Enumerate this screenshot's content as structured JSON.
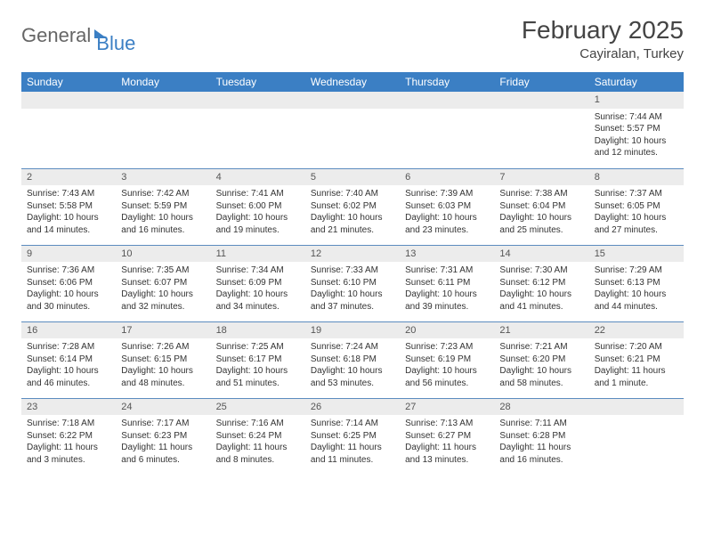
{
  "brand": {
    "part1": "General",
    "part2": "Blue"
  },
  "title": "February 2025",
  "location": "Cayiralan, Turkey",
  "colors": {
    "header_bg": "#3b7fc4",
    "header_fg": "#ffffff",
    "daynum_bg": "#ececec",
    "row_border": "#5c8cbf",
    "text": "#333333"
  },
  "weekdays": [
    "Sunday",
    "Monday",
    "Tuesday",
    "Wednesday",
    "Thursday",
    "Friday",
    "Saturday"
  ],
  "weeks": [
    [
      null,
      null,
      null,
      null,
      null,
      null,
      {
        "n": "1",
        "sr": "7:44 AM",
        "ss": "5:57 PM",
        "dl": "10 hours and 12 minutes."
      }
    ],
    [
      {
        "n": "2",
        "sr": "7:43 AM",
        "ss": "5:58 PM",
        "dl": "10 hours and 14 minutes."
      },
      {
        "n": "3",
        "sr": "7:42 AM",
        "ss": "5:59 PM",
        "dl": "10 hours and 16 minutes."
      },
      {
        "n": "4",
        "sr": "7:41 AM",
        "ss": "6:00 PM",
        "dl": "10 hours and 19 minutes."
      },
      {
        "n": "5",
        "sr": "7:40 AM",
        "ss": "6:02 PM",
        "dl": "10 hours and 21 minutes."
      },
      {
        "n": "6",
        "sr": "7:39 AM",
        "ss": "6:03 PM",
        "dl": "10 hours and 23 minutes."
      },
      {
        "n": "7",
        "sr": "7:38 AM",
        "ss": "6:04 PM",
        "dl": "10 hours and 25 minutes."
      },
      {
        "n": "8",
        "sr": "7:37 AM",
        "ss": "6:05 PM",
        "dl": "10 hours and 27 minutes."
      }
    ],
    [
      {
        "n": "9",
        "sr": "7:36 AM",
        "ss": "6:06 PM",
        "dl": "10 hours and 30 minutes."
      },
      {
        "n": "10",
        "sr": "7:35 AM",
        "ss": "6:07 PM",
        "dl": "10 hours and 32 minutes."
      },
      {
        "n": "11",
        "sr": "7:34 AM",
        "ss": "6:09 PM",
        "dl": "10 hours and 34 minutes."
      },
      {
        "n": "12",
        "sr": "7:33 AM",
        "ss": "6:10 PM",
        "dl": "10 hours and 37 minutes."
      },
      {
        "n": "13",
        "sr": "7:31 AM",
        "ss": "6:11 PM",
        "dl": "10 hours and 39 minutes."
      },
      {
        "n": "14",
        "sr": "7:30 AM",
        "ss": "6:12 PM",
        "dl": "10 hours and 41 minutes."
      },
      {
        "n": "15",
        "sr": "7:29 AM",
        "ss": "6:13 PM",
        "dl": "10 hours and 44 minutes."
      }
    ],
    [
      {
        "n": "16",
        "sr": "7:28 AM",
        "ss": "6:14 PM",
        "dl": "10 hours and 46 minutes."
      },
      {
        "n": "17",
        "sr": "7:26 AM",
        "ss": "6:15 PM",
        "dl": "10 hours and 48 minutes."
      },
      {
        "n": "18",
        "sr": "7:25 AM",
        "ss": "6:17 PM",
        "dl": "10 hours and 51 minutes."
      },
      {
        "n": "19",
        "sr": "7:24 AM",
        "ss": "6:18 PM",
        "dl": "10 hours and 53 minutes."
      },
      {
        "n": "20",
        "sr": "7:23 AM",
        "ss": "6:19 PM",
        "dl": "10 hours and 56 minutes."
      },
      {
        "n": "21",
        "sr": "7:21 AM",
        "ss": "6:20 PM",
        "dl": "10 hours and 58 minutes."
      },
      {
        "n": "22",
        "sr": "7:20 AM",
        "ss": "6:21 PM",
        "dl": "11 hours and 1 minute."
      }
    ],
    [
      {
        "n": "23",
        "sr": "7:18 AM",
        "ss": "6:22 PM",
        "dl": "11 hours and 3 minutes."
      },
      {
        "n": "24",
        "sr": "7:17 AM",
        "ss": "6:23 PM",
        "dl": "11 hours and 6 minutes."
      },
      {
        "n": "25",
        "sr": "7:16 AM",
        "ss": "6:24 PM",
        "dl": "11 hours and 8 minutes."
      },
      {
        "n": "26",
        "sr": "7:14 AM",
        "ss": "6:25 PM",
        "dl": "11 hours and 11 minutes."
      },
      {
        "n": "27",
        "sr": "7:13 AM",
        "ss": "6:27 PM",
        "dl": "11 hours and 13 minutes."
      },
      {
        "n": "28",
        "sr": "7:11 AM",
        "ss": "6:28 PM",
        "dl": "11 hours and 16 minutes."
      },
      null
    ]
  ],
  "labels": {
    "sunrise": "Sunrise:",
    "sunset": "Sunset:",
    "daylight": "Daylight:"
  }
}
